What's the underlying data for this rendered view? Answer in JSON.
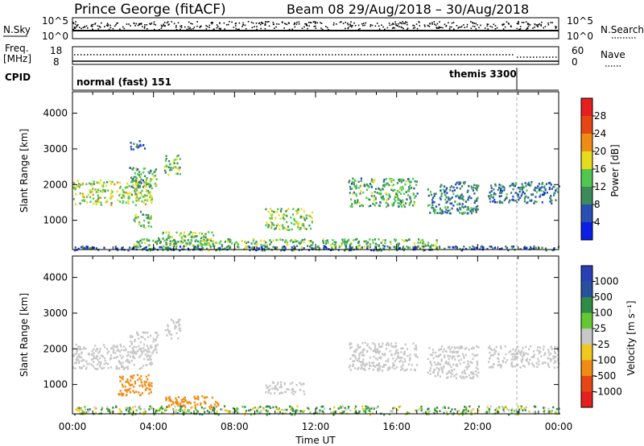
{
  "header": {
    "station": "Prince George (fitACF)",
    "beam_date": "Beam 08  29/Aug/2018 – 30/Aug/2018"
  },
  "status_panels": {
    "nsky": {
      "label": "N.Sky",
      "left_ticks": [
        "10^5",
        "10^0"
      ],
      "right_ticks": [
        "10^5",
        "10^0"
      ],
      "right_label": "N.Search"
    },
    "freq": {
      "label_line1": "Freq.",
      "label_line2": "[MHz]",
      "left_ticks": [
        "18",
        "8"
      ],
      "right_ticks": [
        "60",
        "0"
      ],
      "right_label": "Nave"
    },
    "cpid": {
      "label": "CPID",
      "programs": [
        "normal (fast) 151",
        "themis 3300"
      ]
    }
  },
  "chart_data": [
    {
      "type": "heatmap",
      "name": "power",
      "xlabel": "Time UT",
      "ylabel": "Slant Range [km]",
      "xlim": [
        0,
        24
      ],
      "ylim": [
        180,
        4600
      ],
      "x_ticks": [
        "00:00",
        "04:00",
        "08:00",
        "12:00",
        "16:00",
        "20:00",
        "00:00"
      ],
      "y_ticks": [
        1000,
        2000,
        3000,
        4000
      ],
      "colorbar": {
        "label": "Power [dB]",
        "ticks": [
          "4",
          "8",
          "12",
          "16",
          "20",
          "24",
          "28"
        ],
        "colors": [
          "#0a1ee6",
          "#2850b4",
          "#3c8c5a",
          "#50c850",
          "#e6dc1e",
          "#f08c14",
          "#e64614",
          "#e61e1e"
        ]
      },
      "regions": [
        {
          "t0": 0.0,
          "t1": 3.9,
          "r0": 1450,
          "r1": 2150,
          "value": 16
        },
        {
          "t0": 2.8,
          "t1": 4.2,
          "r0": 1900,
          "r1": 2500,
          "value": 12
        },
        {
          "t0": 4.5,
          "t1": 5.3,
          "r0": 2300,
          "r1": 2850,
          "value": 14
        },
        {
          "t0": 2.8,
          "t1": 3.6,
          "r0": 3000,
          "r1": 3250,
          "value": 6
        },
        {
          "t0": 3.0,
          "t1": 3.9,
          "r0": 800,
          "r1": 1300,
          "value": 14
        },
        {
          "t0": 4.2,
          "t1": 7.0,
          "r0": 350,
          "r1": 700,
          "value": 14
        },
        {
          "t0": 9.5,
          "t1": 11.8,
          "r0": 750,
          "r1": 1350,
          "value": 15
        },
        {
          "t0": 13.6,
          "t1": 17.0,
          "r0": 1400,
          "r1": 2200,
          "value": 12
        },
        {
          "t0": 17.5,
          "t1": 20.0,
          "r0": 1200,
          "r1": 2100,
          "value": 9
        },
        {
          "t0": 20.5,
          "t1": 24.0,
          "r0": 1500,
          "r1": 2100,
          "value": 8
        },
        {
          "t0": 3.0,
          "t1": 18.0,
          "r0": 180,
          "r1": 500,
          "value": 13
        },
        {
          "t0": 0.0,
          "t1": 24.0,
          "r0": 180,
          "r1": 300,
          "value": 6
        }
      ]
    },
    {
      "type": "heatmap",
      "name": "velocity",
      "xlabel": "Time UT",
      "ylabel": "Slant Range [km]",
      "xlim": [
        0,
        24
      ],
      "ylim": [
        180,
        4600
      ],
      "x_ticks": [
        "00:00",
        "04:00",
        "08:00",
        "12:00",
        "16:00",
        "20:00",
        "00:00"
      ],
      "y_ticks": [
        1000,
        2000,
        3000,
        4000
      ],
      "colorbar": {
        "label": "Velocity [m s⁻¹]",
        "ticks": [
          "1000",
          "500",
          "100",
          "25",
          "-25",
          "-100",
          "-500",
          "-1000"
        ],
        "colors": [
          "#2840b4",
          "#2850a0",
          "#2e8c46",
          "#64c832",
          "#c8c8c8",
          "#f0c81e",
          "#f08c14",
          "#e64614",
          "#e61e1e"
        ]
      },
      "regions": [
        {
          "t0": 0.0,
          "t1": 3.9,
          "r0": 1450,
          "r1": 2150,
          "value": 0
        },
        {
          "t0": 2.8,
          "t1": 4.2,
          "r0": 1900,
          "r1": 2500,
          "value": 0
        },
        {
          "t0": 4.5,
          "t1": 5.3,
          "r0": 2300,
          "r1": 2850,
          "value": 0
        },
        {
          "t0": 2.2,
          "t1": 3.9,
          "r0": 700,
          "r1": 1300,
          "value": -300
        },
        {
          "t0": 4.5,
          "t1": 7.2,
          "r0": 350,
          "r1": 700,
          "value": -300
        },
        {
          "t0": 9.5,
          "t1": 11.5,
          "r0": 750,
          "r1": 1100,
          "value": 0
        },
        {
          "t0": 13.6,
          "t1": 17.0,
          "r0": 1400,
          "r1": 2200,
          "value": 0
        },
        {
          "t0": 17.5,
          "t1": 20.0,
          "r0": 1200,
          "r1": 2100,
          "value": 0
        },
        {
          "t0": 20.5,
          "t1": 24.0,
          "r0": 1500,
          "r1": 2100,
          "value": 0
        },
        {
          "t0": 0.0,
          "t1": 24.0,
          "r0": 180,
          "r1": 420,
          "value": 60
        }
      ]
    }
  ]
}
